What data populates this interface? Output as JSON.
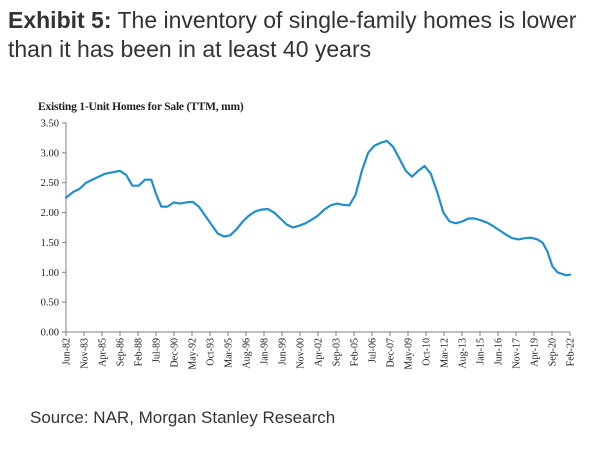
{
  "exhibit": {
    "label": "Exhibit 5:",
    "title": "The inventory of single-family homes is lower than it has been in at least 40 years"
  },
  "source": "Source: NAR, Morgan Stanley Research",
  "chart_data": {
    "type": "line",
    "title": "Existing 1-Unit Homes for Sale (TTM, mm)",
    "xlabel": "",
    "ylabel": "",
    "ylim": [
      0,
      3.5
    ],
    "yticks": [
      "0.00",
      "0.50",
      "1.00",
      "1.50",
      "2.00",
      "2.50",
      "3.00",
      "3.50"
    ],
    "xticks": [
      "Jun-82",
      "Nov-83",
      "Apr-85",
      "Sep-86",
      "Feb-88",
      "Jul-89",
      "Dec-90",
      "May-92",
      "Oct-93",
      "Mar-95",
      "Aug-96",
      "Jan-98",
      "Jun-99",
      "Nov-00",
      "Apr-02",
      "Sep-03",
      "Feb-05",
      "Jul-06",
      "Dec-07",
      "May-09",
      "Oct-10",
      "Mar-12",
      "Aug-13",
      "Jan-15",
      "Jun-16",
      "Nov-17",
      "Apr-19",
      "Sep-20",
      "Feb-22"
    ],
    "grid": false,
    "color": "#1f8fce",
    "series": [
      {
        "name": "Existing 1-Unit Homes for Sale",
        "x": [
          1982.4,
          1983.0,
          1983.5,
          1984.0,
          1984.5,
          1985.0,
          1985.5,
          1986.0,
          1986.7,
          1987.2,
          1987.7,
          1988.2,
          1988.7,
          1989.2,
          1989.6,
          1990.0,
          1990.5,
          1991.0,
          1991.5,
          1992.0,
          1992.5,
          1993.0,
          1993.5,
          1994.0,
          1994.5,
          1995.0,
          1995.5,
          1996.0,
          1996.5,
          1997.0,
          1997.5,
          1998.0,
          1998.5,
          1999.0,
          1999.5,
          2000.0,
          2000.5,
          2001.0,
          2001.5,
          2002.0,
          2002.5,
          2003.0,
          2003.5,
          2004.0,
          2004.5,
          2005.0,
          2005.5,
          2006.0,
          2006.5,
          2007.0,
          2007.5,
          2008.0,
          2008.5,
          2009.0,
          2009.5,
          2010.0,
          2010.5,
          2011.0,
          2011.5,
          2012.0,
          2012.5,
          2013.0,
          2013.5,
          2014.0,
          2014.5,
          2015.0,
          2015.5,
          2016.0,
          2016.5,
          2017.0,
          2017.5,
          2018.0,
          2018.5,
          2019.0,
          2019.5,
          2020.0,
          2020.4,
          2020.8,
          2021.2,
          2021.6,
          2022.0,
          2022.3,
          2022.6
        ],
        "y": [
          2.25,
          2.35,
          2.4,
          2.5,
          2.55,
          2.6,
          2.65,
          2.67,
          2.7,
          2.63,
          2.45,
          2.45,
          2.55,
          2.55,
          2.3,
          2.1,
          2.1,
          2.17,
          2.15,
          2.17,
          2.18,
          2.1,
          1.95,
          1.8,
          1.65,
          1.6,
          1.62,
          1.72,
          1.85,
          1.95,
          2.02,
          2.05,
          2.06,
          2.0,
          1.9,
          1.8,
          1.75,
          1.78,
          1.82,
          1.88,
          1.95,
          2.05,
          2.12,
          2.15,
          2.13,
          2.12,
          2.3,
          2.7,
          3.0,
          3.12,
          3.17,
          3.2,
          3.1,
          2.9,
          2.7,
          2.6,
          2.7,
          2.78,
          2.65,
          2.35,
          2.0,
          1.85,
          1.82,
          1.85,
          1.9,
          1.9,
          1.87,
          1.83,
          1.77,
          1.7,
          1.63,
          1.57,
          1.55,
          1.57,
          1.58,
          1.55,
          1.5,
          1.35,
          1.1,
          1.0,
          0.97,
          0.95,
          0.96
        ]
      }
    ]
  }
}
